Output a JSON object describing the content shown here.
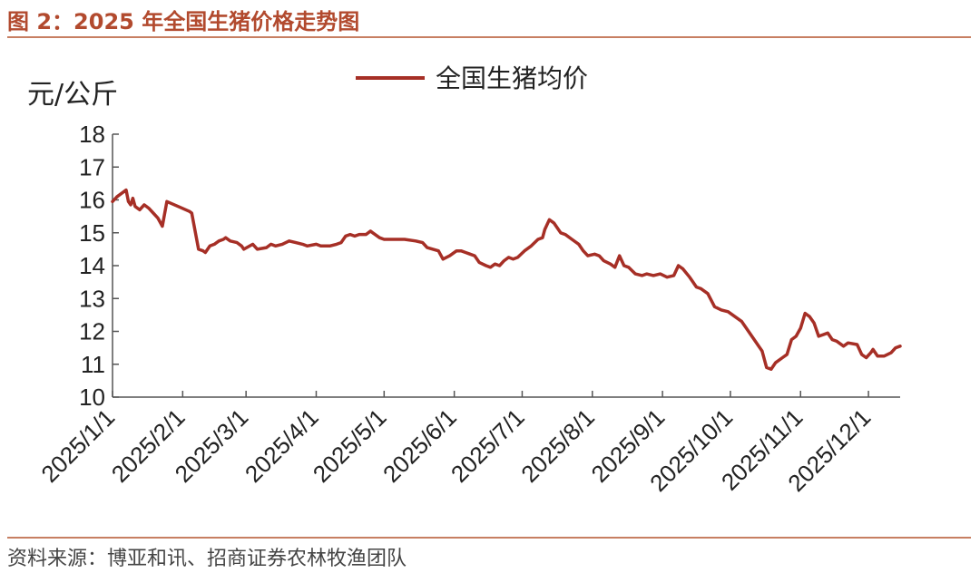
{
  "figure": {
    "title": "图 2：2025 年全国生猪价格走势图",
    "source": "资料来源：博亚和讯、招商证券农林牧渔团队"
  },
  "chart_data": {
    "type": "line",
    "title": "",
    "xlabel": "",
    "ylabel": "元/公斤",
    "ylim": [
      10,
      18
    ],
    "yticks": [
      10,
      11,
      12,
      13,
      14,
      15,
      16,
      17,
      18
    ],
    "grid": false,
    "legend": "top-center",
    "x_range": [
      "2025-01-01",
      "2025-12-15"
    ],
    "x_tick_labels": [
      "2025/1/1",
      "2025/2/1",
      "2025/3/1",
      "2025/4/1",
      "2025/5/1",
      "2025/6/1",
      "2025/7/1",
      "2025/8/1",
      "2025/9/1",
      "2025/10/1",
      "2025/11/1",
      "2025/12/1"
    ],
    "x_tick_dates": [
      "2025-01-01",
      "2025-02-01",
      "2025-03-01",
      "2025-04-01",
      "2025-05-01",
      "2025-06-01",
      "2025-07-01",
      "2025-08-01",
      "2025-09-01",
      "2025-10-01",
      "2025-11-01",
      "2025-12-01"
    ],
    "series": [
      {
        "name": "全国生猪均价",
        "color": "#a62f26",
        "points": [
          [
            "2025-01-01",
            15.95
          ],
          [
            "2025-01-03",
            16.1
          ],
          [
            "2025-01-07",
            16.3
          ],
          [
            "2025-01-08",
            15.95
          ],
          [
            "2025-01-09",
            15.85
          ],
          [
            "2025-01-10",
            16.05
          ],
          [
            "2025-01-11",
            15.8
          ],
          [
            "2025-01-13",
            15.7
          ],
          [
            "2025-01-15",
            15.85
          ],
          [
            "2025-01-17",
            15.75
          ],
          [
            "2025-01-19",
            15.6
          ],
          [
            "2025-01-21",
            15.45
          ],
          [
            "2025-01-23",
            15.2
          ],
          [
            "2025-01-25",
            15.95
          ],
          [
            "2025-01-30",
            15.8
          ],
          [
            "2025-02-04",
            15.65
          ],
          [
            "2025-02-05",
            15.6
          ],
          [
            "2025-02-08",
            14.5
          ],
          [
            "2025-02-10",
            14.45
          ],
          [
            "2025-02-11",
            14.4
          ],
          [
            "2025-02-13",
            14.6
          ],
          [
            "2025-02-15",
            14.65
          ],
          [
            "2025-02-17",
            14.75
          ],
          [
            "2025-02-19",
            14.8
          ],
          [
            "2025-02-20",
            14.85
          ],
          [
            "2025-02-22",
            14.75
          ],
          [
            "2025-02-25",
            14.7
          ],
          [
            "2025-02-27",
            14.6
          ],
          [
            "2025-02-28",
            14.5
          ],
          [
            "2025-03-04",
            14.65
          ],
          [
            "2025-03-06",
            14.5
          ],
          [
            "2025-03-10",
            14.55
          ],
          [
            "2025-03-12",
            14.65
          ],
          [
            "2025-03-14",
            14.6
          ],
          [
            "2025-03-17",
            14.65
          ],
          [
            "2025-03-20",
            14.75
          ],
          [
            "2025-03-23",
            14.7
          ],
          [
            "2025-03-26",
            14.65
          ],
          [
            "2025-03-28",
            14.6
          ],
          [
            "2025-04-01",
            14.65
          ],
          [
            "2025-04-03",
            14.6
          ],
          [
            "2025-04-07",
            14.6
          ],
          [
            "2025-04-10",
            14.65
          ],
          [
            "2025-04-12",
            14.7
          ],
          [
            "2025-04-14",
            14.9
          ],
          [
            "2025-04-16",
            14.95
          ],
          [
            "2025-04-18",
            14.9
          ],
          [
            "2025-04-20",
            14.95
          ],
          [
            "2025-04-23",
            14.95
          ],
          [
            "2025-04-25",
            15.05
          ],
          [
            "2025-04-26",
            15.0
          ],
          [
            "2025-04-29",
            14.85
          ],
          [
            "2025-05-01",
            14.8
          ],
          [
            "2025-05-10",
            14.8
          ],
          [
            "2025-05-15",
            14.75
          ],
          [
            "2025-05-18",
            14.7
          ],
          [
            "2025-05-20",
            14.55
          ],
          [
            "2025-05-25",
            14.45
          ],
          [
            "2025-05-27",
            14.2
          ],
          [
            "2025-05-30",
            14.3
          ],
          [
            "2025-06-02",
            14.45
          ],
          [
            "2025-06-04",
            14.45
          ],
          [
            "2025-06-06",
            14.4
          ],
          [
            "2025-06-08",
            14.35
          ],
          [
            "2025-06-10",
            14.3
          ],
          [
            "2025-06-12",
            14.1
          ],
          [
            "2025-06-15",
            14.0
          ],
          [
            "2025-06-17",
            13.95
          ],
          [
            "2025-06-19",
            14.05
          ],
          [
            "2025-06-21",
            14.0
          ],
          [
            "2025-06-23",
            14.15
          ],
          [
            "2025-06-25",
            14.25
          ],
          [
            "2025-06-27",
            14.2
          ],
          [
            "2025-06-29",
            14.25
          ],
          [
            "2025-07-02",
            14.45
          ],
          [
            "2025-07-05",
            14.6
          ],
          [
            "2025-07-08",
            14.8
          ],
          [
            "2025-07-10",
            14.85
          ],
          [
            "2025-07-11",
            15.1
          ],
          [
            "2025-07-13",
            15.4
          ],
          [
            "2025-07-15",
            15.3
          ],
          [
            "2025-07-18",
            15.0
          ],
          [
            "2025-07-20",
            14.95
          ],
          [
            "2025-07-23",
            14.8
          ],
          [
            "2025-07-26",
            14.65
          ],
          [
            "2025-07-28",
            14.45
          ],
          [
            "2025-07-30",
            14.3
          ],
          [
            "2025-08-02",
            14.35
          ],
          [
            "2025-08-04",
            14.3
          ],
          [
            "2025-08-06",
            14.15
          ],
          [
            "2025-08-09",
            14.05
          ],
          [
            "2025-08-11",
            13.95
          ],
          [
            "2025-08-13",
            14.3
          ],
          [
            "2025-08-15",
            14.0
          ],
          [
            "2025-08-17",
            13.95
          ],
          [
            "2025-08-20",
            13.75
          ],
          [
            "2025-08-23",
            13.7
          ],
          [
            "2025-08-25",
            13.75
          ],
          [
            "2025-08-28",
            13.7
          ],
          [
            "2025-08-31",
            13.75
          ],
          [
            "2025-09-03",
            13.65
          ],
          [
            "2025-09-06",
            13.7
          ],
          [
            "2025-09-08",
            14.0
          ],
          [
            "2025-09-10",
            13.9
          ],
          [
            "2025-09-13",
            13.65
          ],
          [
            "2025-09-16",
            13.35
          ],
          [
            "2025-09-18",
            13.3
          ],
          [
            "2025-09-21",
            13.15
          ],
          [
            "2025-09-24",
            12.75
          ],
          [
            "2025-09-27",
            12.65
          ],
          [
            "2025-09-30",
            12.6
          ],
          [
            "2025-10-03",
            12.45
          ],
          [
            "2025-10-06",
            12.3
          ],
          [
            "2025-10-09",
            12.0
          ],
          [
            "2025-10-12",
            11.7
          ],
          [
            "2025-10-15",
            11.4
          ],
          [
            "2025-10-17",
            10.9
          ],
          [
            "2025-10-19",
            10.85
          ],
          [
            "2025-10-21",
            11.05
          ],
          [
            "2025-10-24",
            11.2
          ],
          [
            "2025-10-26",
            11.3
          ],
          [
            "2025-10-28",
            11.75
          ],
          [
            "2025-10-30",
            11.85
          ],
          [
            "2025-11-01",
            12.1
          ],
          [
            "2025-11-03",
            12.55
          ],
          [
            "2025-11-05",
            12.45
          ],
          [
            "2025-11-07",
            12.25
          ],
          [
            "2025-11-09",
            11.85
          ],
          [
            "2025-11-11",
            11.9
          ],
          [
            "2025-11-13",
            11.95
          ],
          [
            "2025-11-15",
            11.75
          ],
          [
            "2025-11-17",
            11.7
          ],
          [
            "2025-11-20",
            11.55
          ],
          [
            "2025-11-22",
            11.65
          ],
          [
            "2025-11-26",
            11.6
          ],
          [
            "2025-11-28",
            11.3
          ],
          [
            "2025-11-30",
            11.2
          ],
          [
            "2025-12-02",
            11.35
          ],
          [
            "2025-12-03",
            11.45
          ],
          [
            "2025-12-05",
            11.25
          ],
          [
            "2025-12-08",
            11.25
          ],
          [
            "2025-12-11",
            11.35
          ],
          [
            "2025-12-13",
            11.5
          ],
          [
            "2025-12-15",
            11.55
          ]
        ]
      }
    ]
  }
}
